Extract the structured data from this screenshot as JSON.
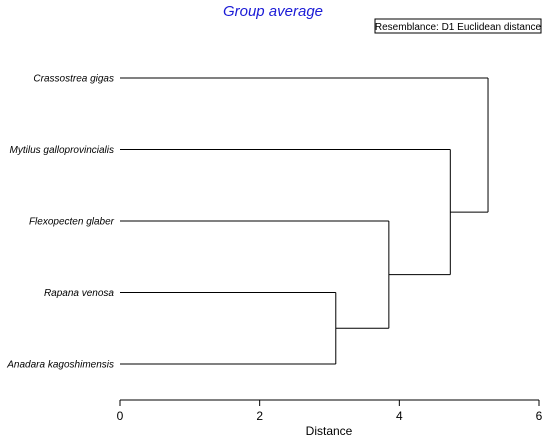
{
  "chart_data": {
    "type": "dendrogram",
    "title": "Group average",
    "legend": "Resemblance: D1 Euclidean distance",
    "xlabel": "Distance",
    "xlim": [
      0,
      6
    ],
    "xticks": [
      0,
      2,
      4,
      6
    ],
    "leaves": [
      "Crassostrea gigas",
      "Mytilus galloprovincialis",
      "Flexopecten glaber",
      "Rapana venosa",
      "Anadara kagoshimensis"
    ],
    "merges": [
      {
        "id": "m1",
        "children": [
          "Rapana venosa",
          "Anadara kagoshimensis"
        ],
        "distance": 3.09
      },
      {
        "id": "m2",
        "children": [
          "Flexopecten glaber",
          "m1"
        ],
        "distance": 3.85
      },
      {
        "id": "m3",
        "children": [
          "Mytilus galloprovincialis",
          "m2"
        ],
        "distance": 4.73
      },
      {
        "id": "m4",
        "children": [
          "Crassostrea gigas",
          "m3"
        ],
        "distance": 5.27
      }
    ]
  }
}
